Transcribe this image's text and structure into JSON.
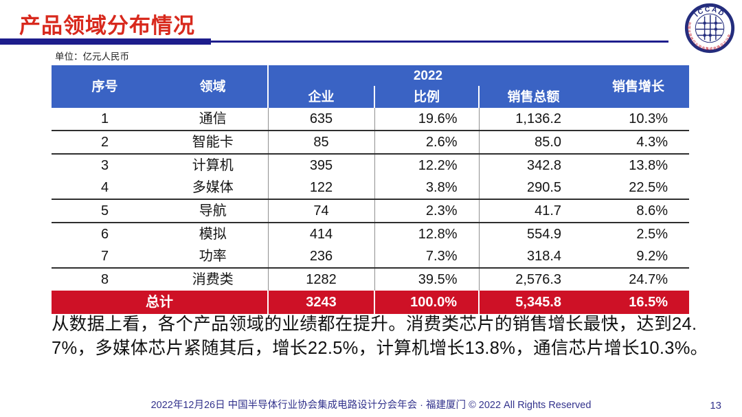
{
  "slide": {
    "title": "产品领域分布情况",
    "unit_label": "单位：亿元人民币",
    "summary": "从数据上看，各个产品领域的业绩都在提升。消费类芯片的销售增长最快，达到24.7%，多媒体芯片紧随其后，增长22.5%，计算机增长13.8%，通信芯片增长10.3%。",
    "footer_text": "2022年12月26日 中国半导体行业协会集成电路设计分会年会 · 福建厦门 © 2022 All Rights Reserved",
    "page_number": "13"
  },
  "logo": {
    "acronym": "ICCAD",
    "ring_text": "中国半导体行业协会集成电路设计分会"
  },
  "table": {
    "header": {
      "no": "序号",
      "field": "领域",
      "year_group": "2022",
      "companies": "企业",
      "ratio": "比例",
      "sales": "销售总额",
      "growth": "销售增长"
    },
    "rows": [
      {
        "no": "1",
        "field": "通信",
        "companies": "635",
        "ratio": "19.6%",
        "sales": "1,136.2",
        "growth": "10.3%"
      },
      {
        "no": "2",
        "field": "智能卡",
        "companies": "85",
        "ratio": "2.6%",
        "sales": "85.0",
        "growth": "4.3%"
      },
      {
        "no": "3",
        "field": "计算机",
        "companies": "395",
        "ratio": "12.2%",
        "sales": "342.8",
        "growth": "13.8%"
      },
      {
        "no": "4",
        "field": "多媒体",
        "companies": "122",
        "ratio": "3.8%",
        "sales": "290.5",
        "growth": "22.5%"
      },
      {
        "no": "5",
        "field": "导航",
        "companies": "74",
        "ratio": "2.3%",
        "sales": "41.7",
        "growth": "8.6%"
      },
      {
        "no": "6",
        "field": "模拟",
        "companies": "414",
        "ratio": "12.8%",
        "sales": "554.9",
        "growth": "2.5%"
      },
      {
        "no": "7",
        "field": "功率",
        "companies": "236",
        "ratio": "7.3%",
        "sales": "318.4",
        "growth": "9.2%"
      },
      {
        "no": "8",
        "field": "消费类",
        "companies": "1282",
        "ratio": "39.5%",
        "sales": "2,576.3",
        "growth": "24.7%"
      }
    ],
    "total": {
      "label": "总计",
      "companies": "3243",
      "ratio": "100.0%",
      "sales": "5,345.8",
      "growth": "16.5%"
    }
  },
  "colors": {
    "title_red": "#d8291d",
    "navy_bar": "#1d1d8c",
    "header_blue": "#3a63c4",
    "total_red": "#ce1126",
    "footer_navy": "#32328c"
  },
  "chart_data": {
    "type": "table",
    "title": "产品领域分布情况",
    "unit": "亿元人民币",
    "columns": [
      "序号",
      "领域",
      "2022 企业",
      "2022 比例",
      "2022 销售总额",
      "销售增长"
    ],
    "rows": [
      [
        1,
        "通信",
        635,
        "19.6%",
        1136.2,
        "10.3%"
      ],
      [
        2,
        "智能卡",
        85,
        "2.6%",
        85.0,
        "4.3%"
      ],
      [
        3,
        "计算机",
        395,
        "12.2%",
        342.8,
        "13.8%"
      ],
      [
        4,
        "多媒体",
        122,
        "3.8%",
        290.5,
        "22.5%"
      ],
      [
        5,
        "导航",
        74,
        "2.3%",
        41.7,
        "8.6%"
      ],
      [
        6,
        "模拟",
        414,
        "12.8%",
        554.9,
        "2.5%"
      ],
      [
        7,
        "功率",
        236,
        "7.3%",
        318.4,
        "9.2%"
      ],
      [
        8,
        "消费类",
        1282,
        "39.5%",
        2576.3,
        "24.7%"
      ]
    ],
    "total_row": [
      "总计",
      "",
      3243,
      "100.0%",
      5345.8,
      "16.5%"
    ]
  }
}
